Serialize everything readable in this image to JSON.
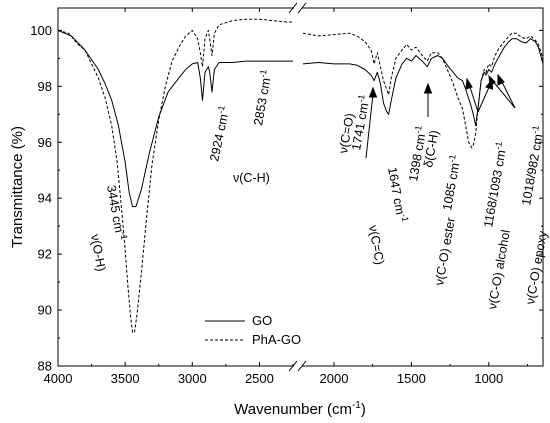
{
  "chart_data": {
    "type": "line",
    "title": "",
    "xlabel": "Wavenumber (cm",
    "xlabel_sup": "-1",
    "xlabel_end": ")",
    "ylabel": "Transmittance (%)",
    "ylim": [
      88,
      100.8
    ],
    "y_ticks": [
      88,
      90,
      92,
      94,
      96,
      98,
      100
    ],
    "x_axis_broken": true,
    "x_segments": [
      {
        "xlim": [
          4000,
          2250
        ],
        "ticks": [
          4000,
          3500,
          3000,
          2500
        ]
      },
      {
        "xlim": [
          2200,
          650
        ],
        "ticks": [
          2000,
          1500,
          1000
        ]
      }
    ],
    "legend_position": "bottom-left",
    "series": [
      {
        "name": "GO",
        "color": "#000000",
        "dash": "solid",
        "points": [
          [
            4000,
            100.0
          ],
          [
            3900,
            99.8
          ],
          [
            3800,
            99.3
          ],
          [
            3700,
            98.6
          ],
          [
            3650,
            98.1
          ],
          [
            3600,
            97.5
          ],
          [
            3550,
            96.6
          ],
          [
            3500,
            95.3
          ],
          [
            3470,
            94.2
          ],
          [
            3445,
            93.7
          ],
          [
            3420,
            93.7
          ],
          [
            3380,
            94.3
          ],
          [
            3320,
            95.6
          ],
          [
            3250,
            96.9
          ],
          [
            3180,
            97.8
          ],
          [
            3100,
            98.3
          ],
          [
            3050,
            98.6
          ],
          [
            3000,
            98.8
          ],
          [
            2960,
            98.85
          ],
          [
            2940,
            98.3
          ],
          [
            2924,
            97.5
          ],
          [
            2905,
            98.5
          ],
          [
            2880,
            98.7
          ],
          [
            2870,
            98.5
          ],
          [
            2853,
            97.8
          ],
          [
            2835,
            98.6
          ],
          [
            2800,
            98.85
          ],
          [
            2700,
            98.85
          ],
          [
            2600,
            98.9
          ],
          [
            2500,
            98.9
          ],
          [
            2350,
            98.9
          ],
          [
            2250,
            98.9
          ]
        ],
        "points_2": [
          [
            2200,
            98.8
          ],
          [
            2100,
            98.85
          ],
          [
            2000,
            98.8
          ],
          [
            1900,
            98.8
          ],
          [
            1850,
            98.75
          ],
          [
            1800,
            98.6
          ],
          [
            1760,
            98.4
          ],
          [
            1741,
            98.2
          ],
          [
            1720,
            98.5
          ],
          [
            1700,
            98.1
          ],
          [
            1680,
            97.4
          ],
          [
            1660,
            97.1
          ],
          [
            1647,
            97.0
          ],
          [
            1630,
            97.5
          ],
          [
            1600,
            98.3
          ],
          [
            1560,
            98.8
          ],
          [
            1530,
            99.0
          ],
          [
            1500,
            98.9
          ],
          [
            1470,
            99.1
          ],
          [
            1430,
            98.9
          ],
          [
            1398,
            98.7
          ],
          [
            1370,
            99.0
          ],
          [
            1330,
            99.1
          ],
          [
            1300,
            99.0
          ],
          [
            1260,
            98.7
          ],
          [
            1230,
            98.5
          ],
          [
            1200,
            98.3
          ],
          [
            1170,
            98.2
          ],
          [
            1150,
            97.9
          ],
          [
            1120,
            97.4
          ],
          [
            1100,
            97.0
          ],
          [
            1085,
            96.6
          ],
          [
            1070,
            97.2
          ],
          [
            1050,
            98.2
          ],
          [
            1030,
            98.5
          ],
          [
            1018,
            98.4
          ],
          [
            1000,
            98.6
          ],
          [
            982,
            98.5
          ],
          [
            960,
            98.8
          ],
          [
            930,
            99.1
          ],
          [
            900,
            99.4
          ],
          [
            870,
            99.6
          ],
          [
            850,
            99.7
          ],
          [
            820,
            99.7
          ],
          [
            790,
            99.6
          ],
          [
            760,
            99.55
          ],
          [
            730,
            99.7
          ],
          [
            700,
            99.6
          ],
          [
            680,
            99.4
          ],
          [
            650,
            98.8
          ]
        ]
      },
      {
        "name": "PhA-GO",
        "color": "#000000",
        "dash": "dashed",
        "points": [
          [
            4000,
            100.0
          ],
          [
            3920,
            99.9
          ],
          [
            3850,
            99.5
          ],
          [
            3800,
            99.3
          ],
          [
            3750,
            98.8
          ],
          [
            3700,
            98.3
          ],
          [
            3650,
            97.6
          ],
          [
            3600,
            96.6
          ],
          [
            3560,
            95.3
          ],
          [
            3530,
            93.8
          ],
          [
            3500,
            92.2
          ],
          [
            3480,
            90.9
          ],
          [
            3460,
            89.8
          ],
          [
            3445,
            89.2
          ],
          [
            3430,
            89.2
          ],
          [
            3410,
            89.9
          ],
          [
            3380,
            91.3
          ],
          [
            3340,
            93.3
          ],
          [
            3300,
            95.2
          ],
          [
            3250,
            96.8
          ],
          [
            3200,
            98.0
          ],
          [
            3150,
            98.9
          ],
          [
            3100,
            99.4
          ],
          [
            3050,
            99.8
          ],
          [
            3000,
            100.0
          ],
          [
            2960,
            99.7
          ],
          [
            2940,
            99.2
          ],
          [
            2924,
            98.7
          ],
          [
            2905,
            99.7
          ],
          [
            2880,
            100.0
          ],
          [
            2870,
            99.7
          ],
          [
            2853,
            99.1
          ],
          [
            2835,
            99.9
          ],
          [
            2800,
            100.2
          ],
          [
            2700,
            100.35
          ],
          [
            2600,
            100.4
          ],
          [
            2500,
            100.4
          ],
          [
            2400,
            100.35
          ],
          [
            2300,
            100.3
          ],
          [
            2250,
            100.3
          ]
        ],
        "points_2": [
          [
            2200,
            99.9
          ],
          [
            2100,
            99.8
          ],
          [
            2000,
            99.85
          ],
          [
            1900,
            99.9
          ],
          [
            1850,
            99.8
          ],
          [
            1800,
            99.6
          ],
          [
            1760,
            99.3
          ],
          [
            1741,
            98.8
          ],
          [
            1720,
            99.2
          ],
          [
            1700,
            98.7
          ],
          [
            1680,
            98.2
          ],
          [
            1660,
            97.9
          ],
          [
            1647,
            97.7
          ],
          [
            1630,
            98.3
          ],
          [
            1600,
            99.0
          ],
          [
            1560,
            99.3
          ],
          [
            1530,
            99.5
          ],
          [
            1500,
            99.3
          ],
          [
            1470,
            99.4
          ],
          [
            1430,
            99.1
          ],
          [
            1398,
            98.9
          ],
          [
            1370,
            99.2
          ],
          [
            1330,
            99.2
          ],
          [
            1300,
            99.0
          ],
          [
            1260,
            98.5
          ],
          [
            1230,
            98.1
          ],
          [
            1200,
            97.6
          ],
          [
            1170,
            97.2
          ],
          [
            1150,
            96.6
          ],
          [
            1130,
            96.0
          ],
          [
            1110,
            95.8
          ],
          [
            1100,
            95.9
          ],
          [
            1085,
            96.3
          ],
          [
            1070,
            97.2
          ],
          [
            1050,
            98.2
          ],
          [
            1030,
            98.6
          ],
          [
            1018,
            98.5
          ],
          [
            1000,
            98.8
          ],
          [
            982,
            98.7
          ],
          [
            960,
            99.1
          ],
          [
            930,
            99.4
          ],
          [
            900,
            99.6
          ],
          [
            870,
            99.8
          ],
          [
            850,
            99.9
          ],
          [
            820,
            99.9
          ],
          [
            790,
            99.75
          ],
          [
            760,
            99.7
          ],
          [
            730,
            99.8
          ],
          [
            700,
            99.65
          ],
          [
            680,
            99.5
          ],
          [
            650,
            99.0
          ]
        ]
      }
    ],
    "annotations": [
      {
        "id": "oh-wn",
        "text": "3445 cm",
        "sup": "-1"
      },
      {
        "id": "oh-mode",
        "text": "ν(O-H)"
      },
      {
        "id": "ch-2924",
        "text": "2924 cm",
        "sup": "-1"
      },
      {
        "id": "ch-2853",
        "text": "2853 cm",
        "sup": "-1"
      },
      {
        "id": "ch-mode",
        "text": "ν(C-H)"
      },
      {
        "id": "co-1741",
        "text": "1741 cm",
        "sup": "-1"
      },
      {
        "id": "co-mode",
        "text": "ν(C=O)"
      },
      {
        "id": "cc-1647",
        "text": "1647 cm",
        "sup": "-1"
      },
      {
        "id": "cc-mode",
        "text": "ν(C=C)"
      },
      {
        "id": "ch-1398",
        "text": "1398 cm",
        "sup": "-1"
      },
      {
        "id": "ch-bend",
        "text": "δ(C-H)"
      },
      {
        "id": "ester-wn",
        "text": "1085 cm",
        "sup": "-1"
      },
      {
        "id": "ester-mode",
        "text": "ν(C-O) ester"
      },
      {
        "id": "alc-wn",
        "text": "1168/1093 cm",
        "sup": "-1"
      },
      {
        "id": "alc-mode",
        "text": "ν(C-O) alcohol"
      },
      {
        "id": "epoxy-wn",
        "text": "1018/982 cm",
        "sup": "-1"
      },
      {
        "id": "epoxy-mode",
        "text": "ν(C-O) epoxy"
      }
    ]
  }
}
